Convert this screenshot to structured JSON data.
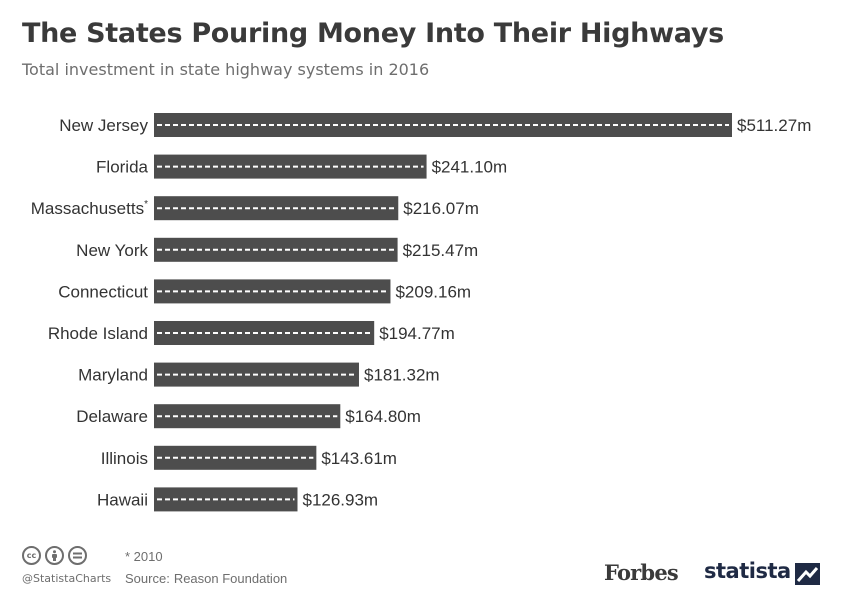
{
  "title": "The States Pouring Money Into Their Highways",
  "subtitle": "Total investment in state highway systems in 2016",
  "footnote": "* 2010",
  "source": {
    "label": "Source:",
    "text": "Reason Foundation"
  },
  "handle": "@StatistaCharts",
  "brands": {
    "forbes": "Forbes",
    "statista": "statista"
  },
  "license_icons": [
    "cc-icon",
    "attribution-icon",
    "no-derivatives-icon"
  ],
  "colors": {
    "bar": "#4d4d4d",
    "dash": "#ffffff",
    "text": "#333333",
    "statista_navy": "#1f2a44"
  },
  "chart_data": {
    "type": "bar",
    "orientation": "horizontal",
    "categories": [
      "New Jersey",
      "Florida",
      "Massachusetts",
      "New York",
      "Connecticut",
      "Rhode Island",
      "Maryland",
      "Delaware",
      "Illinois",
      "Hawaii"
    ],
    "category_markers": [
      "",
      "",
      "*",
      "",
      "",
      "",
      "",
      "",
      "",
      ""
    ],
    "values": [
      511.27,
      241.1,
      216.07,
      215.47,
      209.16,
      194.77,
      181.32,
      164.8,
      143.61,
      126.93
    ],
    "labels": [
      "$511.27m",
      "$241.10m",
      "$216.07m",
      "$215.47m",
      "$209.16m",
      "$194.77m",
      "$181.32m",
      "$164.80m",
      "$143.61m",
      "$126.93m"
    ],
    "unit": "million USD",
    "xlim": [
      0,
      511.27
    ],
    "grid": false,
    "legend": "none",
    "style": "road"
  }
}
